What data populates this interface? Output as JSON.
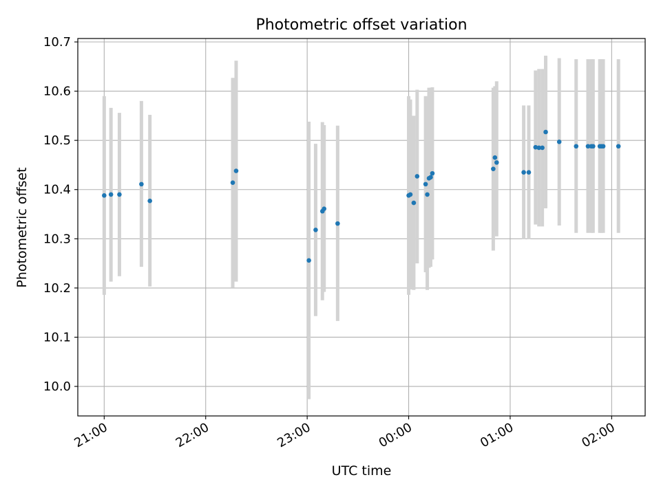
{
  "chart_data": {
    "type": "scatter",
    "title": "Photometric offset variation",
    "xlabel": "UTC time",
    "ylabel": "Photometric offset",
    "x_tick_labels": [
      "21:00",
      "22:00",
      "23:00",
      "00:00",
      "01:00",
      "02:00"
    ],
    "y_tick_labels": [
      "10.0",
      "10.1",
      "10.2",
      "10.3",
      "10.4",
      "10.5",
      "10.6",
      "10.7"
    ],
    "x_ticks_hours": [
      0,
      1,
      2,
      3,
      4,
      5
    ],
    "y_ticks": [
      10.0,
      10.1,
      10.2,
      10.3,
      10.4,
      10.5,
      10.6,
      10.7
    ],
    "xlim_hours": [
      -0.26,
      5.33
    ],
    "ylim": [
      9.94,
      10.707
    ],
    "grid": true,
    "marker_color": "#1f77b4",
    "errorbar_color": "#d3d3d3",
    "points": [
      {
        "t": "21:00",
        "y": 10.388,
        "lo": 10.186,
        "hi": 10.59
      },
      {
        "t": "21:04",
        "y": 10.39,
        "lo": 10.213,
        "hi": 10.566
      },
      {
        "t": "21:09",
        "y": 10.39,
        "lo": 10.224,
        "hi": 10.556
      },
      {
        "t": "21:22",
        "y": 10.411,
        "lo": 10.243,
        "hi": 10.58
      },
      {
        "t": "21:27",
        "y": 10.377,
        "lo": 10.203,
        "hi": 10.552
      },
      {
        "t": "22:16",
        "y": 10.414,
        "lo": 10.201,
        "hi": 10.627
      },
      {
        "t": "22:18",
        "y": 10.438,
        "lo": 10.213,
        "hi": 10.662
      },
      {
        "t": "23:01",
        "y": 10.256,
        "lo": 9.974,
        "hi": 10.538
      },
      {
        "t": "23:05",
        "y": 10.318,
        "lo": 10.143,
        "hi": 10.493
      },
      {
        "t": "23:09",
        "y": 10.356,
        "lo": 10.175,
        "hi": 10.537
      },
      {
        "t": "23:10",
        "y": 10.361,
        "lo": 10.192,
        "hi": 10.531
      },
      {
        "t": "23:18",
        "y": 10.331,
        "lo": 10.133,
        "hi": 10.53
      },
      {
        "t": "00:00",
        "y": 10.388,
        "lo": 10.186,
        "hi": 10.59
      },
      {
        "t": "00:01",
        "y": 10.39,
        "lo": 10.197,
        "hi": 10.583
      },
      {
        "t": "00:03",
        "y": 10.373,
        "lo": 10.196,
        "hi": 10.55
      },
      {
        "t": "00:05",
        "y": 10.427,
        "lo": 10.25,
        "hi": 10.603
      },
      {
        "t": "00:10",
        "y": 10.411,
        "lo": 10.232,
        "hi": 10.59
      },
      {
        "t": "00:11",
        "y": 10.39,
        "lo": 10.196,
        "hi": 10.585
      },
      {
        "t": "00:12",
        "y": 10.423,
        "lo": 10.241,
        "hi": 10.607
      },
      {
        "t": "00:13",
        "y": 10.425,
        "lo": 10.243,
        "hi": 10.607
      },
      {
        "t": "00:14",
        "y": 10.433,
        "lo": 10.258,
        "hi": 10.608
      },
      {
        "t": "00:50",
        "y": 10.442,
        "lo": 10.276,
        "hi": 10.607
      },
      {
        "t": "00:51",
        "y": 10.465,
        "lo": 10.314,
        "hi": 10.61
      },
      {
        "t": "00:52",
        "y": 10.455,
        "lo": 10.305,
        "hi": 10.62
      },
      {
        "t": "01:08",
        "y": 10.435,
        "lo": 10.299,
        "hi": 10.571
      },
      {
        "t": "01:11",
        "y": 10.435,
        "lo": 10.299,
        "hi": 10.571
      },
      {
        "t": "01:15",
        "y": 10.486,
        "lo": 10.329,
        "hi": 10.642
      },
      {
        "t": "01:17",
        "y": 10.485,
        "lo": 10.325,
        "hi": 10.645
      },
      {
        "t": "01:19",
        "y": 10.485,
        "lo": 10.325,
        "hi": 10.645
      },
      {
        "t": "01:21",
        "y": 10.517,
        "lo": 10.362,
        "hi": 10.672
      },
      {
        "t": "01:29",
        "y": 10.497,
        "lo": 10.327,
        "hi": 10.667
      },
      {
        "t": "01:39",
        "y": 10.488,
        "lo": 10.312,
        "hi": 10.665
      },
      {
        "t": "01:46",
        "y": 10.488,
        "lo": 10.312,
        "hi": 10.665
      },
      {
        "t": "01:48",
        "y": 10.488,
        "lo": 10.312,
        "hi": 10.665
      },
      {
        "t": "01:49",
        "y": 10.488,
        "lo": 10.312,
        "hi": 10.665
      },
      {
        "t": "01:53",
        "y": 10.488,
        "lo": 10.312,
        "hi": 10.665
      },
      {
        "t": "01:54",
        "y": 10.488,
        "lo": 10.312,
        "hi": 10.665
      },
      {
        "t": "01:55",
        "y": 10.488,
        "lo": 10.312,
        "hi": 10.665
      },
      {
        "t": "02:04",
        "y": 10.488,
        "lo": 10.312,
        "hi": 10.665
      }
    ]
  }
}
